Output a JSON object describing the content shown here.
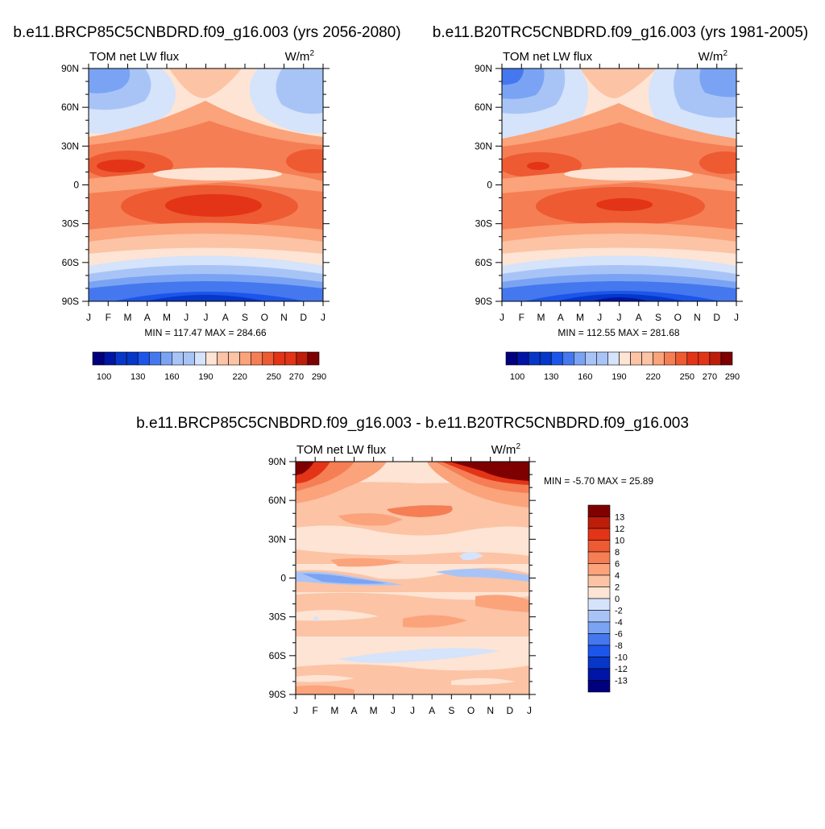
{
  "colors": {
    "palette": [
      "#00007f",
      "#0015a6",
      "#0637c9",
      "#1c55ea",
      "#4578ee",
      "#7aa3f3",
      "#a8c4f7",
      "#d5e3fb",
      "#fde4d4",
      "#fcc3a5",
      "#fba37b",
      "#f57e55",
      "#ee5a32",
      "#e33417",
      "#bd1e0a",
      "#7f0000"
    ]
  },
  "chart_data": [
    {
      "id": "panel_a",
      "type": "heatmap",
      "title": "b.e11.BRCP85C5CNBDRD.f09_g16.003 (yrs 2056-2080)",
      "left_label": "TOM net LW flux",
      "right_label_base": "W/m",
      "right_label_sup": "2",
      "x_tick_labels": [
        "J",
        "F",
        "M",
        "A",
        "M",
        "J",
        "J",
        "A",
        "S",
        "O",
        "N",
        "D",
        "J"
      ],
      "y_tick_labels": [
        "90N",
        "60N",
        "30N",
        "0",
        "30S",
        "60S",
        "90S"
      ],
      "y_range": [
        -90,
        90
      ],
      "min_max_text": "MIN = 117.47 MAX = 284.66",
      "min": 117.47,
      "max": 284.66,
      "levels": [
        100,
        110,
        120,
        130,
        140,
        150,
        160,
        170,
        180,
        190,
        200,
        210,
        220,
        230,
        240,
        250,
        260,
        270,
        280,
        290
      ],
      "colorbar_levels": [
        100,
        130,
        160,
        190,
        220,
        250,
        270,
        290
      ],
      "colorbar_tick_labels": [
        "100",
        "130",
        "160",
        "190",
        "220",
        "250",
        "270",
        "290"
      ]
    },
    {
      "id": "panel_b",
      "type": "heatmap",
      "title": "b.e11.B20TRC5CNBDRD.f09_g16.003 (yrs 1981-2005)",
      "left_label": "TOM net LW flux",
      "right_label_base": "W/m",
      "right_label_sup": "2",
      "x_tick_labels": [
        "J",
        "F",
        "M",
        "A",
        "M",
        "J",
        "J",
        "A",
        "S",
        "O",
        "N",
        "D",
        "J"
      ],
      "y_tick_labels": [
        "90N",
        "60N",
        "30N",
        "0",
        "30S",
        "60S",
        "90S"
      ],
      "y_range": [
        -90,
        90
      ],
      "min_max_text": "MIN = 112.55 MAX = 281.68",
      "min": 112.55,
      "max": 281.68,
      "levels": [
        100,
        110,
        120,
        130,
        140,
        150,
        160,
        170,
        180,
        190,
        200,
        210,
        220,
        230,
        240,
        250,
        260,
        270,
        280,
        290
      ],
      "colorbar_levels": [
        100,
        130,
        160,
        190,
        220,
        250,
        270,
        290
      ],
      "colorbar_tick_labels": [
        "100",
        "130",
        "160",
        "190",
        "220",
        "250",
        "270",
        "290"
      ]
    },
    {
      "id": "panel_diff",
      "type": "heatmap",
      "title": "b.e11.BRCP85C5CNBDRD.f09_g16.003 - b.e11.B20TRC5CNBDRD.f09_g16.003",
      "left_label": "TOM net LW flux",
      "right_label_base": "W/m",
      "right_label_sup": "2",
      "x_tick_labels": [
        "J",
        "F",
        "M",
        "A",
        "M",
        "J",
        "J",
        "A",
        "S",
        "O",
        "N",
        "D",
        "J"
      ],
      "y_tick_labels": [
        "90N",
        "60N",
        "30N",
        "0",
        "30S",
        "60S",
        "90S"
      ],
      "y_range": [
        -90,
        90
      ],
      "min_max_text": "MIN =  -5.70 MAX =  25.89",
      "min": -5.7,
      "max": 25.89,
      "levels": [
        -13,
        -12,
        -10,
        -8,
        -6,
        -4,
        -2,
        0,
        2,
        4,
        6,
        8,
        10,
        12,
        13
      ],
      "colorbar_tick_labels": [
        "13",
        "12",
        "10",
        "8",
        "6",
        "4",
        "2",
        "0",
        "-2",
        "-4",
        "-6",
        "-8",
        "-10",
        "-12",
        "-13"
      ]
    }
  ]
}
